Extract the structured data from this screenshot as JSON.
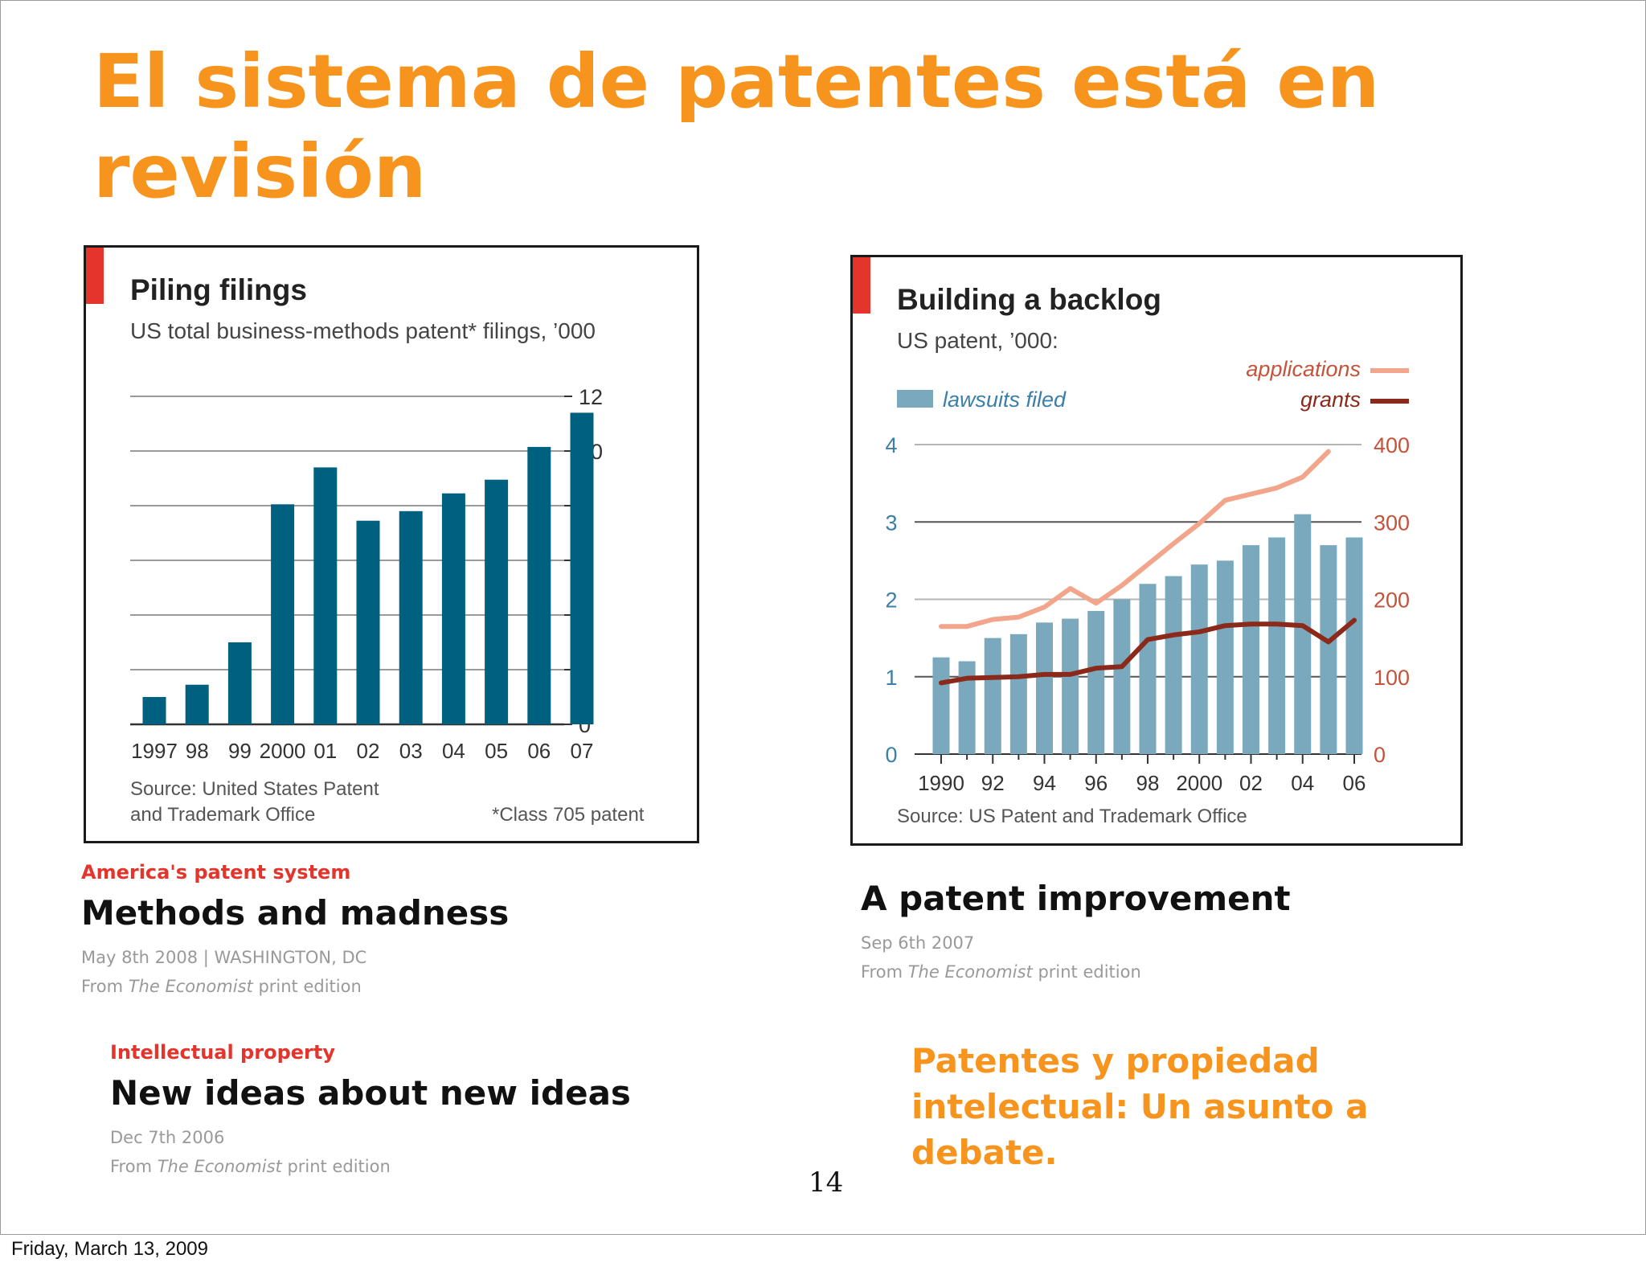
{
  "slide": {
    "title": "El sistema de patentes está en revisión",
    "debate_text": "Patentes y propiedad intelectual: Un asunto a debate.",
    "page_number": "14",
    "footer_date": "Friday, March 13, 2009"
  },
  "articles": [
    {
      "section": "America's patent system",
      "headline": "Methods and madness",
      "dateline": "May 8th 2008 | WASHINGTON, DC",
      "from": "From",
      "publication": "The Economist",
      "edition": "print edition"
    },
    {
      "section": "",
      "headline": "A patent improvement",
      "dateline": "Sep 6th 2007",
      "from": "From",
      "publication": "The Economist",
      "edition": "print edition"
    },
    {
      "section": "Intellectual property",
      "headline": "New ideas about new ideas",
      "dateline": "Dec 7th 2006",
      "from": "From",
      "publication": "The Economist",
      "edition": "print edition"
    }
  ],
  "colors": {
    "title_orange": "#f7941d",
    "economist_red": "#e4342c",
    "bar_dark_teal": "#00607f",
    "bar_light_blue": "#7aa9bd",
    "applications_line": "#f2a58a",
    "grants_line": "#8b2a1a"
  },
  "chart_data": [
    {
      "type": "bar",
      "title": "Piling filings",
      "subtitle": "US total business-methods patent* filings, ’000",
      "categories": [
        "1997",
        "98",
        "99",
        "2000",
        "01",
        "02",
        "03",
        "04",
        "05",
        "06",
        "07"
      ],
      "values": [
        1.0,
        1.45,
        3.0,
        8.05,
        9.4,
        7.45,
        7.8,
        8.45,
        8.95,
        10.15,
        11.4
      ],
      "ylim": [
        0,
        12
      ],
      "yticks": [
        "0",
        "2",
        "4",
        "6",
        "8",
        "10",
        "12"
      ],
      "y_axis_side": "right",
      "grid": true,
      "source_lines": [
        "Source: United States Patent",
        "and Trademark Office"
      ],
      "footnote": "*Class 705 patent"
    },
    {
      "type": "bar",
      "title": "Building a backlog",
      "subtitle": "US patent, ’000:",
      "x": [
        1990,
        1991,
        1992,
        1993,
        1994,
        1995,
        1996,
        1997,
        1998,
        1999,
        2000,
        2001,
        2002,
        2003,
        2004,
        2005,
        2006
      ],
      "xticks": [
        "1990",
        "92",
        "94",
        "96",
        "98",
        "2000",
        "02",
        "04",
        "06"
      ],
      "left_axis": {
        "ticks": [
          "0",
          "1",
          "2",
          "3",
          "4"
        ],
        "range": [
          0,
          4
        ]
      },
      "right_axis": {
        "ticks": [
          "0",
          "100",
          "200",
          "300",
          "400"
        ],
        "range": [
          0,
          400
        ]
      },
      "series": [
        {
          "name": "lawsuits filed",
          "kind": "bar",
          "axis": "left",
          "values": [
            1.25,
            1.2,
            1.5,
            1.55,
            1.7,
            1.75,
            1.85,
            2.0,
            2.2,
            2.3,
            2.45,
            2.5,
            2.7,
            2.8,
            3.1,
            2.7,
            2.8
          ]
        },
        {
          "name": "applications",
          "kind": "line",
          "axis": "right",
          "values": [
            165,
            165,
            174,
            177,
            190,
            214,
            195,
            218,
            245,
            272,
            298,
            328,
            336,
            344,
            358,
            391,
            null
          ]
        },
        {
          "name": "grants",
          "kind": "line",
          "axis": "right",
          "values": [
            92,
            98,
            99,
            100,
            103,
            103,
            111,
            113,
            148,
            154,
            158,
            166,
            168,
            168,
            166,
            145,
            173
          ]
        }
      ],
      "grid": true,
      "legend_placement": "top",
      "source": "Source: US Patent and Trademark Office"
    }
  ]
}
